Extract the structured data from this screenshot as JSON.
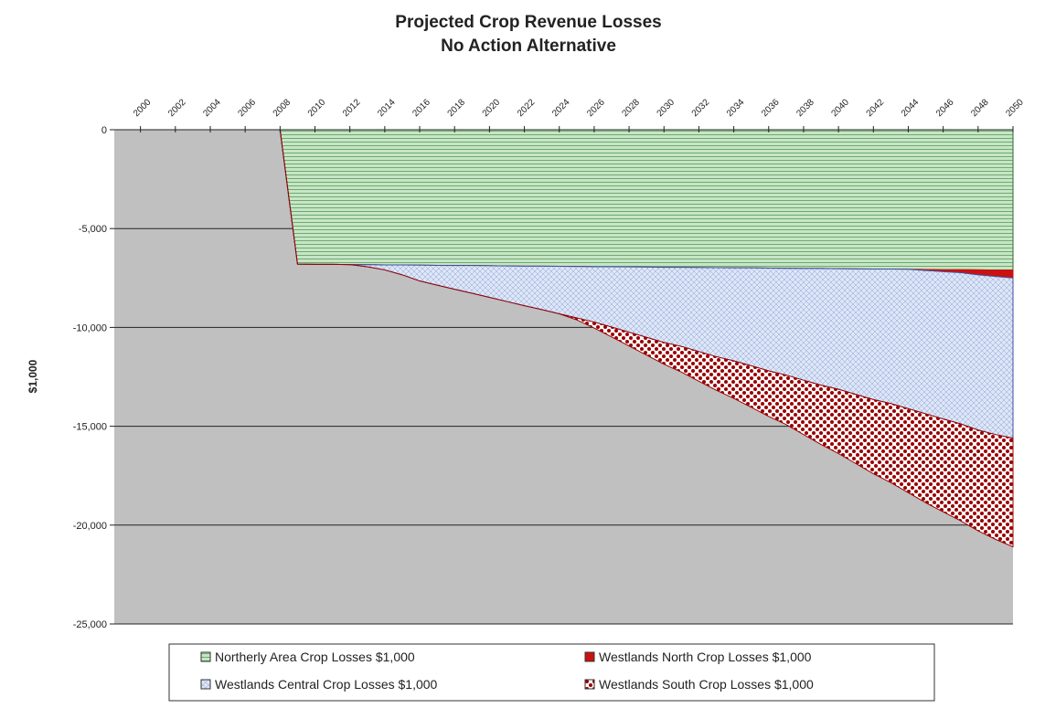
{
  "chart_data": {
    "type": "area",
    "stacked": true,
    "title": "Projected Crop Revenue Losses",
    "subtitle": "No Action Alternative",
    "ylabel": "$1,000",
    "x": [
      2008,
      2009,
      2010,
      2011,
      2012,
      2013,
      2014,
      2015,
      2016,
      2017,
      2018,
      2019,
      2020,
      2021,
      2022,
      2023,
      2024,
      2025,
      2026,
      2027,
      2028,
      2029,
      2030,
      2031,
      2032,
      2033,
      2034,
      2035,
      2036,
      2037,
      2038,
      2039,
      2040,
      2041,
      2042,
      2043,
      2044,
      2045,
      2046,
      2047,
      2048,
      2049,
      2050
    ],
    "xlim": [
      1998.5,
      2050
    ],
    "xticks": [
      2000,
      2002,
      2004,
      2006,
      2008,
      2010,
      2012,
      2014,
      2016,
      2018,
      2020,
      2022,
      2024,
      2026,
      2028,
      2030,
      2032,
      2034,
      2036,
      2038,
      2040,
      2042,
      2044,
      2046,
      2048,
      2050
    ],
    "ylim": [
      -25000,
      0
    ],
    "yticks": [
      0,
      {
        "value": -5000,
        "label": "-5,000"
      },
      {
        "value": -10000,
        "label": "-10,000"
      },
      {
        "value": -15000,
        "label": "-15,000"
      },
      {
        "value": -20000,
        "label": "-20,000"
      },
      {
        "value": -25000,
        "label": "-25,000"
      }
    ],
    "grid": true,
    "legend": "bottom",
    "background": "#c0c0c0",
    "series": [
      {
        "name": "Northerly Area Crop Losses $1,000",
        "color": "#c6e6c6",
        "values": [
          0,
          -6800,
          -6810,
          -6810,
          -6820,
          -6830,
          -6840,
          -6840,
          -6850,
          -6860,
          -6870,
          -6870,
          -6880,
          -6890,
          -6900,
          -6900,
          -6910,
          -6920,
          -6930,
          -6930,
          -6940,
          -6950,
          -6960,
          -6960,
          -6970,
          -6980,
          -6990,
          -6990,
          -7000,
          -7010,
          -7020,
          -7020,
          -7030,
          -7040,
          -7050,
          -7050,
          -7060,
          -7070,
          -7080,
          -7080,
          -7090,
          -7100,
          -7100
        ]
      },
      {
        "name": "Westlands North Crop Losses $1,000",
        "color": "#cc1111",
        "values": [
          0,
          0,
          0,
          0,
          0,
          0,
          0,
          0,
          0,
          0,
          0,
          0,
          0,
          0,
          0,
          0,
          0,
          0,
          0,
          0,
          0,
          0,
          0,
          0,
          0,
          0,
          0,
          0,
          0,
          0,
          0,
          0,
          0,
          0,
          0,
          0,
          0,
          -50,
          -100,
          -150,
          -250,
          -320,
          -400
        ]
      },
      {
        "name": "Westlands Central Crop Losses $1,000",
        "color": "#dde6f7",
        "values": [
          0,
          0,
          0,
          0,
          0,
          -100,
          -250,
          -500,
          -800,
          -1000,
          -1200,
          -1400,
          -1600,
          -1800,
          -2000,
          -2200,
          -2400,
          -2600,
          -2800,
          -3050,
          -3300,
          -3550,
          -3800,
          -4000,
          -4250,
          -4500,
          -4700,
          -4950,
          -5200,
          -5400,
          -5650,
          -5900,
          -6100,
          -6350,
          -6600,
          -6800,
          -7050,
          -7250,
          -7450,
          -7650,
          -7850,
          -8000,
          -8100
        ]
      },
      {
        "name": "Westlands South Crop Losses $1,000",
        "color": "#990000",
        "values": [
          0,
          0,
          0,
          0,
          0,
          0,
          0,
          0,
          0,
          0,
          0,
          0,
          0,
          0,
          0,
          0,
          0,
          -100,
          -300,
          -500,
          -700,
          -900,
          -1100,
          -1300,
          -1500,
          -1700,
          -1900,
          -2100,
          -2300,
          -2500,
          -2750,
          -3000,
          -3250,
          -3500,
          -3750,
          -4000,
          -4250,
          -4500,
          -4700,
          -4900,
          -5100,
          -5300,
          -5500
        ]
      }
    ]
  }
}
